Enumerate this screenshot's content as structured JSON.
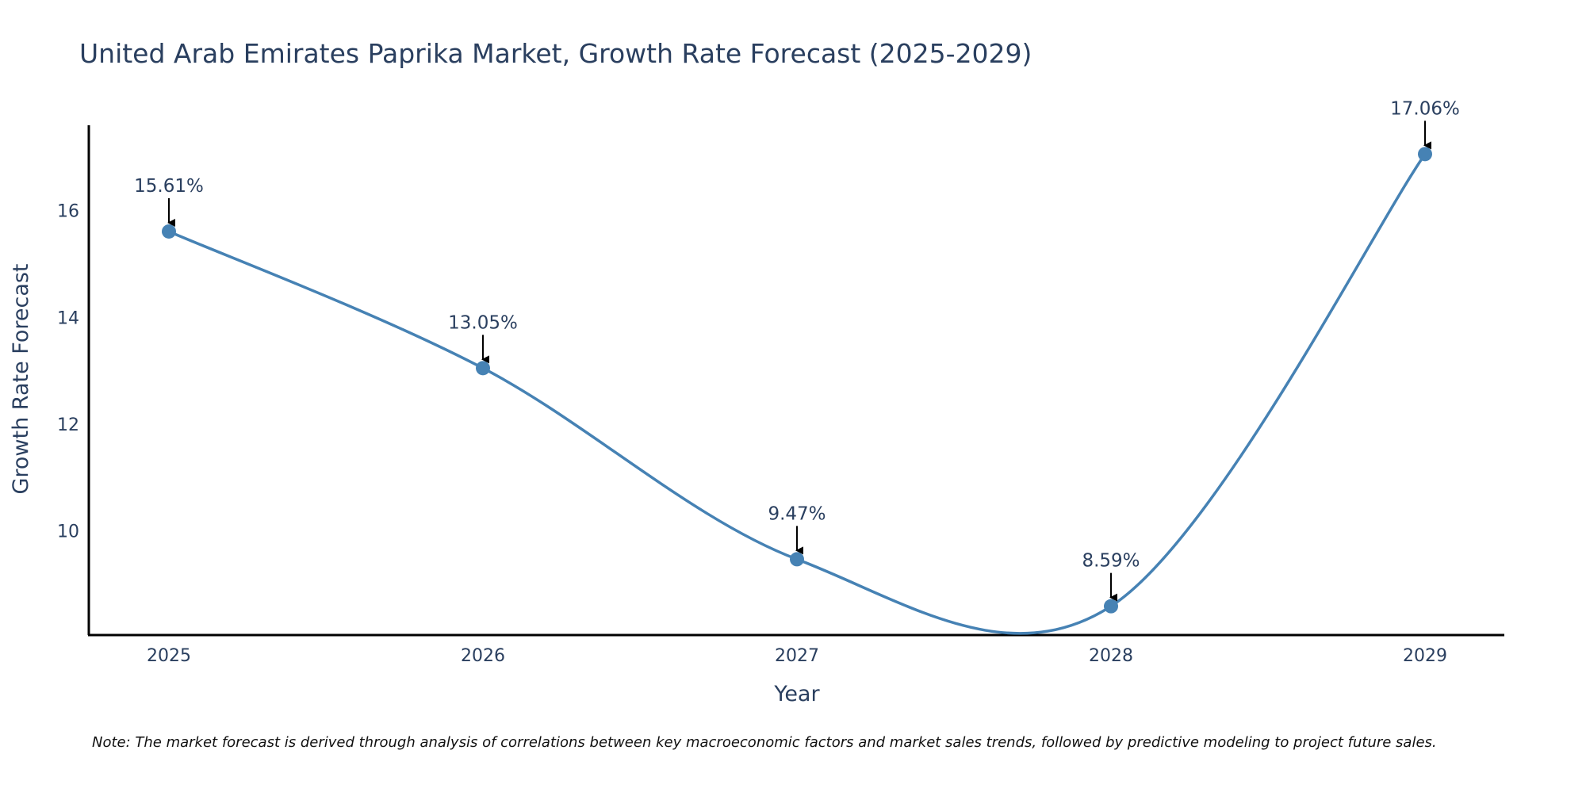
{
  "chart_data": {
    "type": "line",
    "title": "United Arab Emirates Paprika Market, Growth Rate Forecast (2025-2029)",
    "xlabel": "Year",
    "ylabel": "Growth Rate Forecast",
    "categories": [
      "2025",
      "2026",
      "2027",
      "2028",
      "2029"
    ],
    "values": [
      15.61,
      13.05,
      9.47,
      8.59,
      17.06
    ],
    "data_labels": [
      "15.61%",
      "13.05%",
      "9.47%",
      "8.59%",
      "17.06%"
    ],
    "y_ticks": [
      "10",
      "12",
      "14",
      "16"
    ],
    "y_tick_values": [
      10,
      12,
      14,
      16
    ],
    "ylim": [
      8.05,
      17.6
    ],
    "line_shape": "spline",
    "grid": false,
    "legend": "none",
    "colors": {
      "line": "#4682b4",
      "marker": "#4682b4",
      "text": "#2a3f5f",
      "axis": "#000000",
      "arrow": "#000000"
    }
  },
  "note": "Note: The market forecast is derived through analysis of correlations between key macroeconomic factors and market sales trends, followed by predictive modeling to project future sales."
}
